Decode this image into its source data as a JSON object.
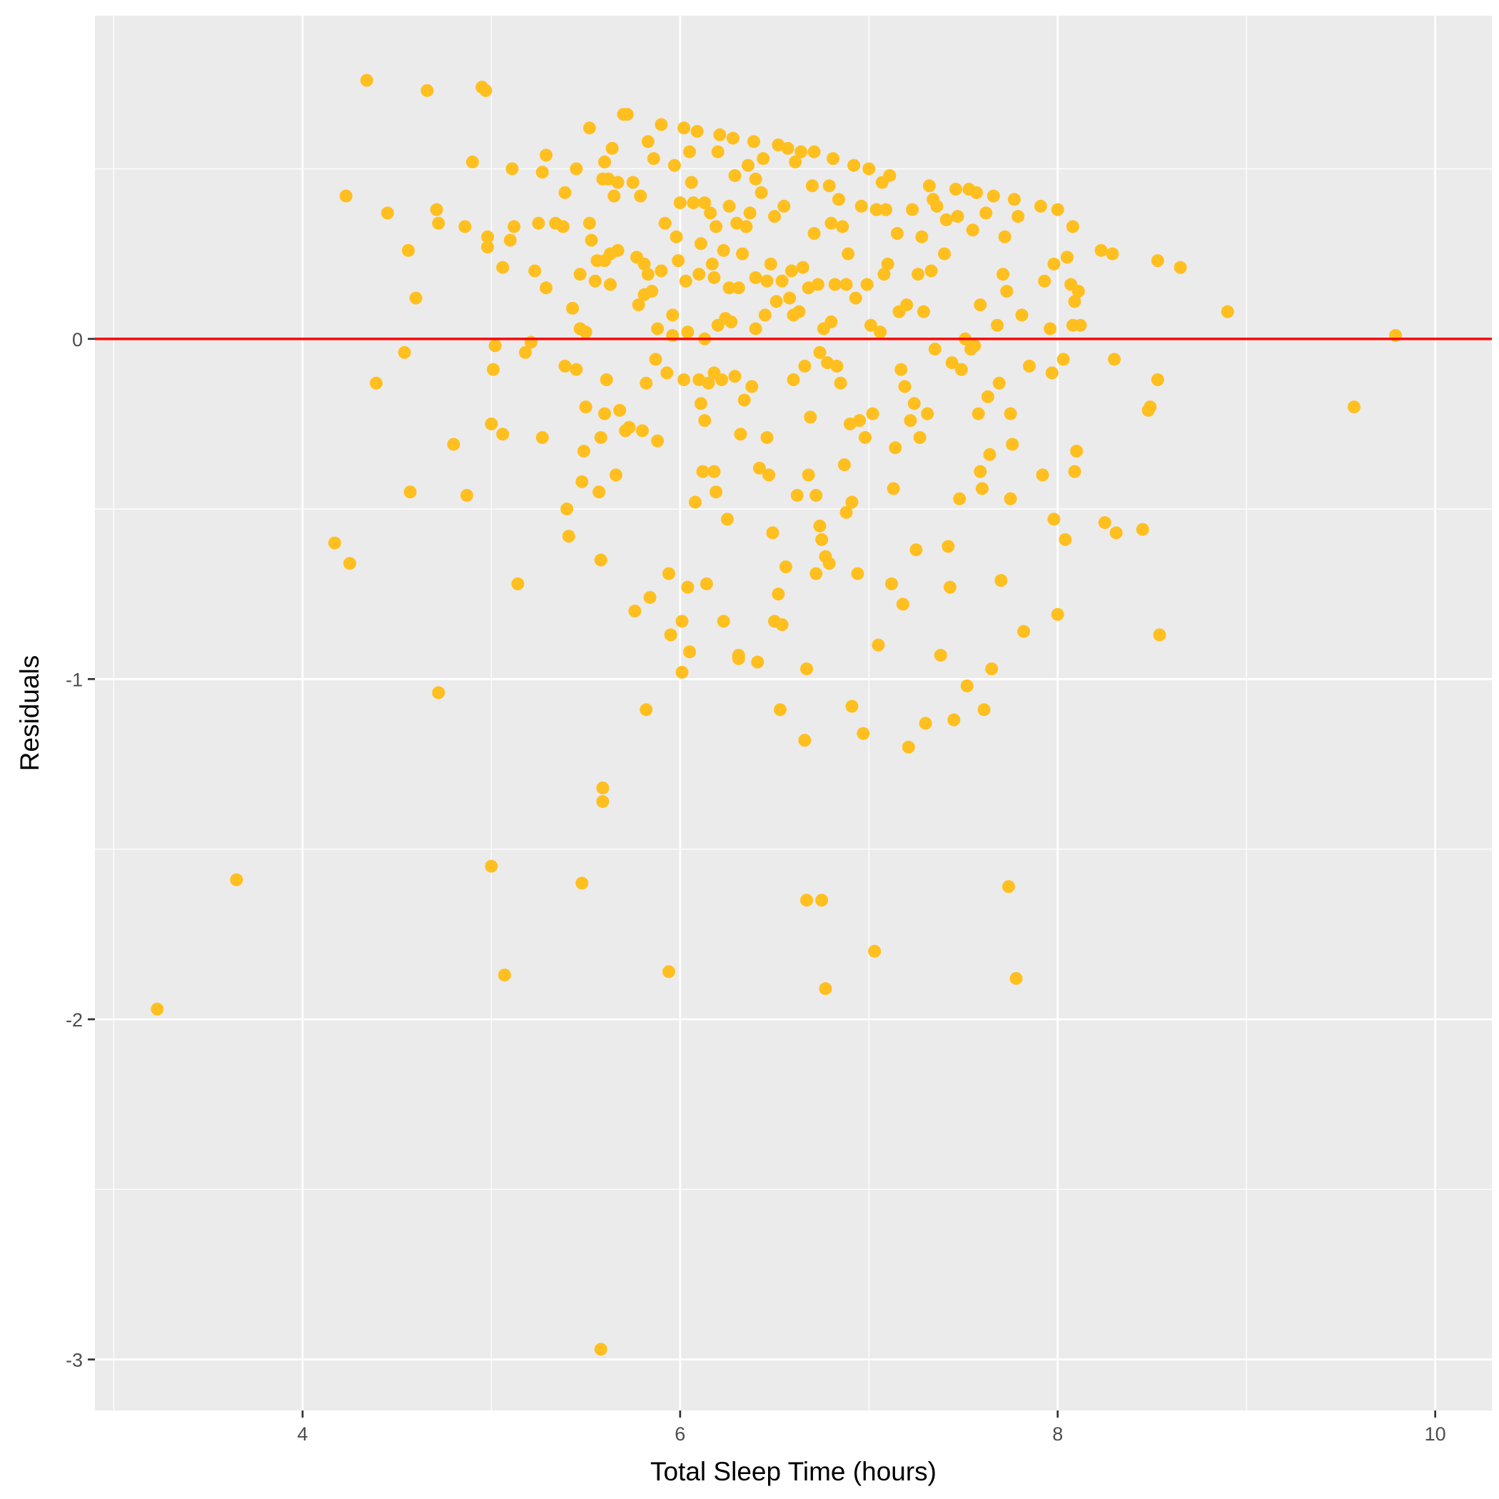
{
  "chart_data": {
    "type": "scatter",
    "title": "",
    "xlabel": "Total Sleep Time (hours)",
    "ylabel": "Residuals",
    "xlim": [
      2.9,
      10.3
    ],
    "ylim": [
      -3.15,
      0.95
    ],
    "x_ticks": [
      4,
      6,
      8,
      10
    ],
    "x_tick_labels": [
      "4",
      "6",
      "8",
      "10"
    ],
    "y_ticks": [
      0,
      -1,
      -2,
      -3
    ],
    "y_tick_labels": [
      "0",
      "-1",
      "-2",
      "-3"
    ],
    "grid": true,
    "legend": "none",
    "point_color": "#FFBF1F",
    "reference_line": {
      "y": 0,
      "color": "#FF0000"
    },
    "panel_color": "#EBEBEB",
    "points": [
      [
        3.23,
        -1.97
      ],
      [
        3.65,
        -1.59
      ],
      [
        4.17,
        -0.6
      ],
      [
        4.23,
        0.42
      ],
      [
        4.25,
        -0.66
      ],
      [
        4.34,
        0.76
      ],
      [
        4.39,
        -0.13
      ],
      [
        4.45,
        0.37
      ],
      [
        4.54,
        -0.04
      ],
      [
        4.56,
        0.26
      ],
      [
        4.57,
        -0.45
      ],
      [
        4.6,
        0.12
      ],
      [
        4.66,
        0.73
      ],
      [
        4.71,
        0.38
      ],
      [
        4.72,
        0.34
      ],
      [
        4.72,
        -1.04
      ],
      [
        4.8,
        -0.31
      ],
      [
        4.86,
        0.33
      ],
      [
        4.87,
        -0.46
      ],
      [
        4.9,
        0.52
      ],
      [
        4.95,
        0.74
      ],
      [
        4.97,
        0.73
      ],
      [
        4.98,
        0.27
      ],
      [
        4.98,
        0.3
      ],
      [
        5.0,
        -0.25
      ],
      [
        5.0,
        -1.55
      ],
      [
        5.01,
        -0.09
      ],
      [
        5.02,
        -0.02
      ],
      [
        5.06,
        -0.28
      ],
      [
        5.06,
        0.21
      ],
      [
        5.07,
        -1.87
      ],
      [
        5.1,
        0.29
      ],
      [
        5.11,
        0.5
      ],
      [
        5.12,
        0.33
      ],
      [
        5.14,
        -0.72
      ],
      [
        5.18,
        -0.04
      ],
      [
        5.21,
        -0.01
      ],
      [
        5.23,
        0.2
      ],
      [
        5.25,
        0.34
      ],
      [
        5.27,
        -0.29
      ],
      [
        5.27,
        0.49
      ],
      [
        5.29,
        0.54
      ],
      [
        5.29,
        0.15
      ],
      [
        5.34,
        0.34
      ],
      [
        5.38,
        0.33
      ],
      [
        5.39,
        0.43
      ],
      [
        5.39,
        -0.08
      ],
      [
        5.4,
        -0.5
      ],
      [
        5.41,
        -0.58
      ],
      [
        5.43,
        0.09
      ],
      [
        5.45,
        0.5
      ],
      [
        5.45,
        -0.09
      ],
      [
        5.47,
        0.03
      ],
      [
        5.47,
        0.19
      ],
      [
        5.48,
        -0.42
      ],
      [
        5.48,
        -1.6
      ],
      [
        5.49,
        -0.33
      ],
      [
        5.5,
        -0.2
      ],
      [
        5.5,
        0.02
      ],
      [
        5.52,
        0.62
      ],
      [
        5.52,
        0.34
      ],
      [
        5.53,
        0.29
      ],
      [
        5.55,
        0.17
      ],
      [
        5.56,
        0.23
      ],
      [
        5.57,
        -0.45
      ],
      [
        5.58,
        -0.29
      ],
      [
        5.58,
        -0.65
      ],
      [
        5.58,
        -2.97
      ],
      [
        5.59,
        0.47
      ],
      [
        5.59,
        -1.32
      ],
      [
        5.59,
        -1.36
      ],
      [
        5.6,
        0.52
      ],
      [
        5.6,
        0.23
      ],
      [
        5.6,
        -0.22
      ],
      [
        5.61,
        -0.12
      ],
      [
        5.62,
        0.47
      ],
      [
        5.63,
        0.16
      ],
      [
        5.63,
        0.25
      ],
      [
        5.64,
        0.56
      ],
      [
        5.65,
        0.42
      ],
      [
        5.66,
        -0.4
      ],
      [
        5.67,
        0.26
      ],
      [
        5.67,
        0.46
      ],
      [
        5.68,
        -0.21
      ],
      [
        5.7,
        0.66
      ],
      [
        5.71,
        -0.27
      ],
      [
        5.72,
        0.66
      ],
      [
        5.73,
        -0.26
      ],
      [
        5.75,
        0.46
      ],
      [
        5.76,
        -0.8
      ],
      [
        5.77,
        0.24
      ],
      [
        5.78,
        0.1
      ],
      [
        5.79,
        0.42
      ],
      [
        5.8,
        -0.27
      ],
      [
        5.81,
        0.13
      ],
      [
        5.81,
        0.22
      ],
      [
        5.82,
        -1.09
      ],
      [
        5.82,
        -0.13
      ],
      [
        5.83,
        0.19
      ],
      [
        5.83,
        0.58
      ],
      [
        5.84,
        -0.76
      ],
      [
        5.85,
        0.14
      ],
      [
        5.86,
        0.53
      ],
      [
        5.87,
        -0.06
      ],
      [
        5.88,
        -0.3
      ],
      [
        5.88,
        0.03
      ],
      [
        5.9,
        0.2
      ],
      [
        5.9,
        0.63
      ],
      [
        5.92,
        0.34
      ],
      [
        5.93,
        -0.1
      ],
      [
        5.94,
        -1.86
      ],
      [
        5.94,
        -0.69
      ],
      [
        5.95,
        -0.87
      ],
      [
        5.96,
        0.01
      ],
      [
        5.96,
        0.07
      ],
      [
        5.97,
        0.51
      ],
      [
        5.98,
        0.3
      ],
      [
        5.99,
        0.23
      ],
      [
        6.0,
        0.4
      ],
      [
        6.01,
        -0.83
      ],
      [
        6.01,
        -0.98
      ],
      [
        6.02,
        0.62
      ],
      [
        6.02,
        -0.12
      ],
      [
        6.03,
        0.17
      ],
      [
        6.04,
        0.02
      ],
      [
        6.04,
        -0.73
      ],
      [
        6.05,
        -0.92
      ],
      [
        6.05,
        0.55
      ],
      [
        6.06,
        0.46
      ],
      [
        6.07,
        0.4
      ],
      [
        6.08,
        -0.48
      ],
      [
        6.09,
        0.61
      ],
      [
        6.1,
        -0.12
      ],
      [
        6.1,
        0.19
      ],
      [
        6.11,
        -0.19
      ],
      [
        6.11,
        0.28
      ],
      [
        6.12,
        -0.39
      ],
      [
        6.13,
        0.0
      ],
      [
        6.13,
        0.4
      ],
      [
        6.13,
        -0.24
      ],
      [
        6.14,
        -0.72
      ],
      [
        6.15,
        -0.13
      ],
      [
        6.16,
        0.37
      ],
      [
        6.17,
        0.22
      ],
      [
        6.18,
        0.18
      ],
      [
        6.18,
        -0.1
      ],
      [
        6.18,
        -0.39
      ],
      [
        6.19,
        0.33
      ],
      [
        6.19,
        -0.45
      ],
      [
        6.2,
        0.55
      ],
      [
        6.2,
        0.04
      ],
      [
        6.21,
        0.6
      ],
      [
        6.22,
        -0.12
      ],
      [
        6.23,
        0.26
      ],
      [
        6.23,
        -0.83
      ],
      [
        6.24,
        0.06
      ],
      [
        6.25,
        -0.53
      ],
      [
        6.26,
        0.39
      ],
      [
        6.26,
        0.15
      ],
      [
        6.27,
        0.05
      ],
      [
        6.28,
        0.59
      ],
      [
        6.29,
        0.48
      ],
      [
        6.29,
        -0.11
      ],
      [
        6.3,
        0.34
      ],
      [
        6.31,
        0.15
      ],
      [
        6.31,
        -0.93
      ],
      [
        6.31,
        -0.94
      ],
      [
        6.32,
        -0.28
      ],
      [
        6.33,
        0.25
      ],
      [
        6.34,
        -0.18
      ],
      [
        6.35,
        0.33
      ],
      [
        6.36,
        0.51
      ],
      [
        6.37,
        0.37
      ],
      [
        6.38,
        -0.14
      ],
      [
        6.39,
        0.58
      ],
      [
        6.4,
        0.18
      ],
      [
        6.4,
        0.03
      ],
      [
        6.4,
        0.47
      ],
      [
        6.41,
        -0.95
      ],
      [
        6.42,
        -0.38
      ],
      [
        6.43,
        0.43
      ],
      [
        6.44,
        0.53
      ],
      [
        6.45,
        0.07
      ],
      [
        6.46,
        -0.29
      ],
      [
        6.46,
        0.17
      ],
      [
        6.47,
        -0.4
      ],
      [
        6.48,
        0.22
      ],
      [
        6.49,
        -0.57
      ],
      [
        6.5,
        0.36
      ],
      [
        6.5,
        -0.83
      ],
      [
        6.51,
        0.11
      ],
      [
        6.52,
        -0.75
      ],
      [
        6.52,
        0.57
      ],
      [
        6.53,
        -1.09
      ],
      [
        6.54,
        0.17
      ],
      [
        6.54,
        -0.84
      ],
      [
        6.55,
        0.39
      ],
      [
        6.56,
        -0.67
      ],
      [
        6.57,
        0.56
      ],
      [
        6.58,
        0.12
      ],
      [
        6.59,
        0.2
      ],
      [
        6.6,
        -0.12
      ],
      [
        6.6,
        0.07
      ],
      [
        6.61,
        0.52
      ],
      [
        6.62,
        -0.46
      ],
      [
        6.63,
        0.08
      ],
      [
        6.64,
        0.55
      ],
      [
        6.65,
        0.21
      ],
      [
        6.66,
        -0.08
      ],
      [
        6.66,
        -1.18
      ],
      [
        6.67,
        -1.65
      ],
      [
        6.67,
        -0.97
      ],
      [
        6.68,
        -0.4
      ],
      [
        6.68,
        0.15
      ],
      [
        6.69,
        -0.23
      ],
      [
        6.7,
        0.45
      ],
      [
        6.71,
        0.55
      ],
      [
        6.71,
        0.31
      ],
      [
        6.72,
        -0.69
      ],
      [
        6.72,
        -0.46
      ],
      [
        6.73,
        0.16
      ],
      [
        6.74,
        -0.55
      ],
      [
        6.74,
        -0.04
      ],
      [
        6.75,
        -1.65
      ],
      [
        6.75,
        -0.59
      ],
      [
        6.76,
        0.03
      ],
      [
        6.77,
        -1.91
      ],
      [
        6.77,
        -0.64
      ],
      [
        6.78,
        -0.07
      ],
      [
        6.79,
        0.45
      ],
      [
        6.79,
        -0.66
      ],
      [
        6.8,
        0.34
      ],
      [
        6.8,
        0.05
      ],
      [
        6.81,
        0.53
      ],
      [
        6.82,
        0.16
      ],
      [
        6.83,
        -0.08
      ],
      [
        6.84,
        0.41
      ],
      [
        6.85,
        -0.13
      ],
      [
        6.86,
        0.33
      ],
      [
        6.87,
        -0.37
      ],
      [
        6.88,
        0.16
      ],
      [
        6.88,
        -0.51
      ],
      [
        6.89,
        0.25
      ],
      [
        6.9,
        -0.25
      ],
      [
        6.91,
        -0.48
      ],
      [
        6.91,
        -1.08
      ],
      [
        6.92,
        0.51
      ],
      [
        6.93,
        0.12
      ],
      [
        6.94,
        -0.69
      ],
      [
        6.95,
        -0.24
      ],
      [
        6.96,
        0.39
      ],
      [
        6.97,
        -1.16
      ],
      [
        6.98,
        -0.29
      ],
      [
        6.99,
        0.16
      ],
      [
        7.0,
        0.5
      ],
      [
        7.01,
        0.04
      ],
      [
        7.02,
        -0.22
      ],
      [
        7.03,
        -1.8
      ],
      [
        7.04,
        0.38
      ],
      [
        7.05,
        -0.9
      ],
      [
        7.06,
        0.02
      ],
      [
        7.07,
        0.46
      ],
      [
        7.08,
        0.19
      ],
      [
        7.09,
        0.38
      ],
      [
        7.1,
        0.22
      ],
      [
        7.11,
        0.48
      ],
      [
        7.12,
        -0.72
      ],
      [
        7.13,
        -0.44
      ],
      [
        7.14,
        -0.32
      ],
      [
        7.15,
        0.31
      ],
      [
        7.16,
        0.08
      ],
      [
        7.17,
        -0.09
      ],
      [
        7.18,
        -0.78
      ],
      [
        7.19,
        -0.14
      ],
      [
        7.2,
        0.1
      ],
      [
        7.21,
        -1.2
      ],
      [
        7.22,
        -0.24
      ],
      [
        7.23,
        0.38
      ],
      [
        7.24,
        -0.19
      ],
      [
        7.25,
        -0.62
      ],
      [
        7.26,
        0.19
      ],
      [
        7.27,
        -0.29
      ],
      [
        7.28,
        0.3
      ],
      [
        7.29,
        0.08
      ],
      [
        7.3,
        -1.13
      ],
      [
        7.31,
        -0.22
      ],
      [
        7.32,
        0.45
      ],
      [
        7.33,
        0.2
      ],
      [
        7.34,
        0.41
      ],
      [
        7.35,
        -0.03
      ],
      [
        7.36,
        0.39
      ],
      [
        7.38,
        -0.93
      ],
      [
        7.4,
        0.25
      ],
      [
        7.41,
        0.35
      ],
      [
        7.42,
        -0.61
      ],
      [
        7.43,
        -0.73
      ],
      [
        7.44,
        -0.07
      ],
      [
        7.45,
        -1.12
      ],
      [
        7.46,
        0.44
      ],
      [
        7.47,
        0.36
      ],
      [
        7.48,
        -0.47
      ],
      [
        7.49,
        -0.09
      ],
      [
        7.51,
        0.0
      ],
      [
        7.52,
        -1.02
      ],
      [
        7.53,
        0.44
      ],
      [
        7.54,
        -0.03
      ],
      [
        7.55,
        0.32
      ],
      [
        7.56,
        -0.02
      ],
      [
        7.57,
        0.43
      ],
      [
        7.58,
        -0.22
      ],
      [
        7.59,
        0.1
      ],
      [
        7.59,
        -0.39
      ],
      [
        7.6,
        -0.44
      ],
      [
        7.61,
        -1.09
      ],
      [
        7.62,
        0.37
      ],
      [
        7.63,
        -0.17
      ],
      [
        7.64,
        -0.34
      ],
      [
        7.65,
        -0.97
      ],
      [
        7.66,
        0.42
      ],
      [
        7.68,
        0.04
      ],
      [
        7.69,
        -0.13
      ],
      [
        7.7,
        -0.71
      ],
      [
        7.71,
        0.19
      ],
      [
        7.72,
        0.3
      ],
      [
        7.73,
        0.14
      ],
      [
        7.74,
        -1.61
      ],
      [
        7.75,
        -0.22
      ],
      [
        7.75,
        -0.47
      ],
      [
        7.76,
        -0.31
      ],
      [
        7.77,
        0.41
      ],
      [
        7.78,
        -1.88
      ],
      [
        7.79,
        0.36
      ],
      [
        7.81,
        0.07
      ],
      [
        7.82,
        -0.86
      ],
      [
        7.85,
        -0.08
      ],
      [
        7.91,
        0.39
      ],
      [
        7.92,
        -0.4
      ],
      [
        7.93,
        0.17
      ],
      [
        7.96,
        0.03
      ],
      [
        7.97,
        -0.1
      ],
      [
        7.98,
        -0.53
      ],
      [
        7.98,
        0.22
      ],
      [
        8.0,
        -0.81
      ],
      [
        8.0,
        0.38
      ],
      [
        8.03,
        -0.06
      ],
      [
        8.04,
        -0.59
      ],
      [
        8.05,
        0.24
      ],
      [
        8.07,
        0.16
      ],
      [
        8.08,
        0.33
      ],
      [
        8.08,
        0.04
      ],
      [
        8.09,
        0.11
      ],
      [
        8.09,
        -0.39
      ],
      [
        8.1,
        -0.33
      ],
      [
        8.11,
        0.14
      ],
      [
        8.12,
        0.04
      ],
      [
        8.23,
        0.26
      ],
      [
        8.25,
        -0.54
      ],
      [
        8.29,
        0.25
      ],
      [
        8.3,
        -0.06
      ],
      [
        8.31,
        -0.57
      ],
      [
        8.45,
        -0.56
      ],
      [
        8.48,
        -0.21
      ],
      [
        8.49,
        -0.2
      ],
      [
        8.53,
        0.23
      ],
      [
        8.53,
        -0.12
      ],
      [
        8.54,
        -0.87
      ],
      [
        8.65,
        0.21
      ],
      [
        8.9,
        0.08
      ],
      [
        9.57,
        -0.2
      ],
      [
        9.79,
        0.01
      ]
    ]
  }
}
